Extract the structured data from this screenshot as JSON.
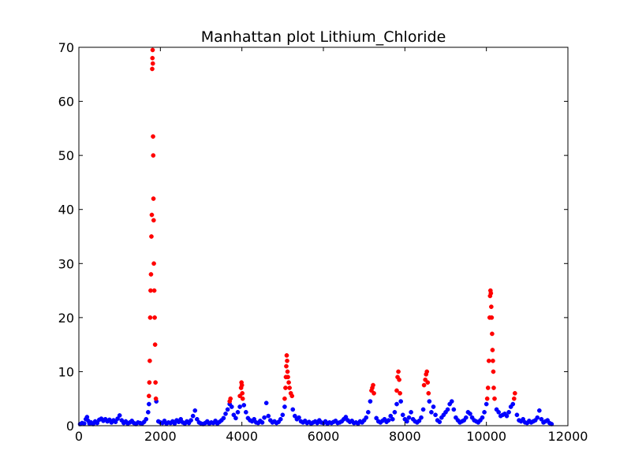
{
  "chart_data": {
    "type": "scatter",
    "title": "Manhattan plot Lithium_Chloride",
    "xlabel": "",
    "ylabel": "",
    "xlim": [
      0,
      12000
    ],
    "ylim": [
      0,
      70
    ],
    "x_ticks": [
      0,
      2000,
      4000,
      6000,
      8000,
      10000,
      12000
    ],
    "x_tick_labels": [
      "0",
      "2000",
      "4000",
      "6000",
      "8000",
      "10000",
      "12000"
    ],
    "y_ticks": [
      0,
      10,
      20,
      30,
      40,
      50,
      60,
      70
    ],
    "y_tick_labels": [
      "0",
      "10",
      "20",
      "30",
      "40",
      "50",
      "60",
      "70"
    ],
    "grid": false,
    "legend": "none",
    "colors": {
      "background": "#ffffff",
      "axes": "#000000",
      "baseline": "#0000ff",
      "significant": "#ff0000"
    },
    "series": [
      {
        "color": "#0000ff",
        "points": [
          [
            30,
            0.3
          ],
          [
            80,
            0.5
          ],
          [
            130,
            0.4
          ],
          [
            170,
            1.2
          ],
          [
            200,
            1.6
          ],
          [
            230,
            0.9
          ],
          [
            260,
            0.4
          ],
          [
            300,
            0.6
          ],
          [
            350,
            0.3
          ],
          [
            400,
            0.8
          ],
          [
            450,
            0.5
          ],
          [
            500,
            1.1
          ],
          [
            550,
            1.3
          ],
          [
            600,
            0.9
          ],
          [
            650,
            1.2
          ],
          [
            700,
            0.8
          ],
          [
            750,
            1.1
          ],
          [
            800,
            0.6
          ],
          [
            850,
            1.0
          ],
          [
            900,
            0.7
          ],
          [
            950,
            1.3
          ],
          [
            1000,
            1.9
          ],
          [
            1050,
            1.0
          ],
          [
            1100,
            0.5
          ],
          [
            1150,
            0.8
          ],
          [
            1200,
            0.4
          ],
          [
            1250,
            0.6
          ],
          [
            1300,
            0.9
          ],
          [
            1350,
            0.5
          ],
          [
            1400,
            0.3
          ],
          [
            1450,
            0.6
          ],
          [
            1500,
            0.5
          ],
          [
            1550,
            0.4
          ],
          [
            1600,
            0.7
          ],
          [
            1650,
            1.2
          ],
          [
            1700,
            2.5
          ],
          [
            1720,
            4.0
          ],
          [
            1900,
            4.5
          ],
          [
            1950,
            0.8
          ],
          [
            2000,
            0.6
          ],
          [
            2050,
            0.5
          ],
          [
            2100,
            0.9
          ],
          [
            2150,
            0.4
          ],
          [
            2200,
            0.6
          ],
          [
            2250,
            0.5
          ],
          [
            2300,
            0.8
          ],
          [
            2350,
            0.4
          ],
          [
            2400,
            1.0
          ],
          [
            2450,
            0.7
          ],
          [
            2500,
            1.2
          ],
          [
            2550,
            0.6
          ],
          [
            2600,
            0.4
          ],
          [
            2650,
            0.8
          ],
          [
            2700,
            0.5
          ],
          [
            2750,
            1.0
          ],
          [
            2800,
            1.8
          ],
          [
            2850,
            2.8
          ],
          [
            2900,
            1.2
          ],
          [
            2950,
            0.6
          ],
          [
            3000,
            0.4
          ],
          [
            3050,
            0.3
          ],
          [
            3100,
            0.5
          ],
          [
            3150,
            0.8
          ],
          [
            3200,
            0.4
          ],
          [
            3250,
            0.6
          ],
          [
            3300,
            0.5
          ],
          [
            3350,
            0.9
          ],
          [
            3400,
            0.4
          ],
          [
            3450,
            0.7
          ],
          [
            3500,
            1.0
          ],
          [
            3550,
            1.4
          ],
          [
            3600,
            2.2
          ],
          [
            3650,
            3.0
          ],
          [
            3700,
            4.0
          ],
          [
            3750,
            3.5
          ],
          [
            3800,
            2.0
          ],
          [
            3850,
            1.4
          ],
          [
            3900,
            2.5
          ],
          [
            3950,
            3.5
          ],
          [
            4050,
            3.8
          ],
          [
            4100,
            2.5
          ],
          [
            4150,
            1.4
          ],
          [
            4200,
            1.0
          ],
          [
            4250,
            0.8
          ],
          [
            4300,
            1.2
          ],
          [
            4350,
            0.6
          ],
          [
            4400,
            0.5
          ],
          [
            4450,
            0.9
          ],
          [
            4500,
            0.6
          ],
          [
            4550,
            1.5
          ],
          [
            4600,
            4.2
          ],
          [
            4650,
            1.8
          ],
          [
            4700,
            1.0
          ],
          [
            4750,
            0.6
          ],
          [
            4800,
            0.8
          ],
          [
            4850,
            0.5
          ],
          [
            4900,
            0.7
          ],
          [
            4950,
            1.2
          ],
          [
            5000,
            2.0
          ],
          [
            5050,
            3.5
          ],
          [
            5250,
            3.0
          ],
          [
            5300,
            1.8
          ],
          [
            5350,
            1.2
          ],
          [
            5400,
            1.5
          ],
          [
            5450,
            0.8
          ],
          [
            5500,
            0.6
          ],
          [
            5550,
            0.9
          ],
          [
            5600,
            0.5
          ],
          [
            5650,
            0.7
          ],
          [
            5700,
            0.4
          ],
          [
            5750,
            0.6
          ],
          [
            5800,
            0.8
          ],
          [
            5850,
            0.5
          ],
          [
            5900,
            1.0
          ],
          [
            5950,
            0.6
          ],
          [
            6000,
            0.5
          ],
          [
            6050,
            0.8
          ],
          [
            6100,
            0.4
          ],
          [
            6150,
            0.6
          ],
          [
            6200,
            0.5
          ],
          [
            6250,
            0.7
          ],
          [
            6300,
            0.9
          ],
          [
            6350,
            0.5
          ],
          [
            6400,
            0.6
          ],
          [
            6450,
            0.8
          ],
          [
            6500,
            1.2
          ],
          [
            6550,
            1.6
          ],
          [
            6600,
            1.0
          ],
          [
            6650,
            0.7
          ],
          [
            6700,
            0.9
          ],
          [
            6750,
            0.5
          ],
          [
            6800,
            0.6
          ],
          [
            6850,
            0.4
          ],
          [
            6900,
            0.8
          ],
          [
            6950,
            0.6
          ],
          [
            7000,
            1.0
          ],
          [
            7050,
            1.5
          ],
          [
            7100,
            2.5
          ],
          [
            7150,
            4.5
          ],
          [
            7300,
            1.4
          ],
          [
            7350,
            0.8
          ],
          [
            7400,
            0.6
          ],
          [
            7450,
            0.9
          ],
          [
            7500,
            1.2
          ],
          [
            7550,
            0.7
          ],
          [
            7600,
            1.0
          ],
          [
            7650,
            1.8
          ],
          [
            7700,
            1.2
          ],
          [
            7750,
            2.5
          ],
          [
            7800,
            4.0
          ],
          [
            7900,
            4.5
          ],
          [
            7950,
            2.0
          ],
          [
            8000,
            1.2
          ],
          [
            8050,
            0.8
          ],
          [
            8100,
            1.5
          ],
          [
            8150,
            2.5
          ],
          [
            8200,
            1.2
          ],
          [
            8250,
            0.8
          ],
          [
            8300,
            0.6
          ],
          [
            8350,
            0.9
          ],
          [
            8400,
            1.5
          ],
          [
            8450,
            3.0
          ],
          [
            8600,
            4.5
          ],
          [
            8650,
            2.5
          ],
          [
            8700,
            3.5
          ],
          [
            8750,
            2.0
          ],
          [
            8800,
            1.0
          ],
          [
            8850,
            0.7
          ],
          [
            8900,
            1.5
          ],
          [
            8950,
            2.0
          ],
          [
            9000,
            2.5
          ],
          [
            9050,
            3.0
          ],
          [
            9100,
            4.0
          ],
          [
            9150,
            4.5
          ],
          [
            9200,
            3.0
          ],
          [
            9250,
            1.5
          ],
          [
            9300,
            1.0
          ],
          [
            9350,
            0.6
          ],
          [
            9400,
            0.8
          ],
          [
            9450,
            1.0
          ],
          [
            9500,
            1.5
          ],
          [
            9550,
            2.5
          ],
          [
            9600,
            2.2
          ],
          [
            9650,
            1.5
          ],
          [
            9700,
            1.0
          ],
          [
            9750,
            0.8
          ],
          [
            9800,
            0.6
          ],
          [
            9850,
            1.0
          ],
          [
            9900,
            1.5
          ],
          [
            9950,
            2.5
          ],
          [
            10000,
            4.0
          ],
          [
            10250,
            3.0
          ],
          [
            10300,
            2.5
          ],
          [
            10350,
            1.8
          ],
          [
            10400,
            2.0
          ],
          [
            10450,
            2.2
          ],
          [
            10500,
            1.8
          ],
          [
            10550,
            2.5
          ],
          [
            10600,
            3.5
          ],
          [
            10650,
            4.0
          ],
          [
            10750,
            2.0
          ],
          [
            10800,
            1.0
          ],
          [
            10850,
            0.8
          ],
          [
            10900,
            1.2
          ],
          [
            10950,
            0.6
          ],
          [
            11000,
            0.5
          ],
          [
            11050,
            0.9
          ],
          [
            11100,
            0.6
          ],
          [
            11150,
            0.8
          ],
          [
            11200,
            1.0
          ],
          [
            11250,
            1.5
          ],
          [
            11300,
            2.8
          ],
          [
            11350,
            1.2
          ],
          [
            11400,
            0.6
          ],
          [
            11450,
            0.8
          ],
          [
            11500,
            1.0
          ],
          [
            11550,
            0.5
          ],
          [
            11600,
            0.3
          ]
        ]
      },
      {
        "color": "#ff0000",
        "points": [
          [
            1720,
            5.5
          ],
          [
            1730,
            8.0
          ],
          [
            1740,
            12.0
          ],
          [
            1750,
            20.0
          ],
          [
            1760,
            25.0
          ],
          [
            1770,
            28.0
          ],
          [
            1780,
            35.0
          ],
          [
            1790,
            39.0
          ],
          [
            1800,
            66.0
          ],
          [
            1805,
            68.0
          ],
          [
            1810,
            69.5
          ],
          [
            1815,
            67.0
          ],
          [
            1820,
            53.5
          ],
          [
            1825,
            50.0
          ],
          [
            1830,
            42.0
          ],
          [
            1835,
            38.0
          ],
          [
            1840,
            30.0
          ],
          [
            1850,
            25.0
          ],
          [
            1860,
            20.0
          ],
          [
            1870,
            15.0
          ],
          [
            1880,
            8.0
          ],
          [
            1890,
            5.0
          ],
          [
            3700,
            4.5
          ],
          [
            3720,
            5.0
          ],
          [
            3950,
            5.5
          ],
          [
            3980,
            7.0
          ],
          [
            3990,
            8.0
          ],
          [
            4000,
            7.5
          ],
          [
            4010,
            6.0
          ],
          [
            4020,
            5.0
          ],
          [
            5050,
            5.0
          ],
          [
            5070,
            7.0
          ],
          [
            5080,
            9.0
          ],
          [
            5090,
            11.0
          ],
          [
            5100,
            13.0
          ],
          [
            5110,
            12.0
          ],
          [
            5120,
            10.0
          ],
          [
            5130,
            9.0
          ],
          [
            5150,
            8.0
          ],
          [
            5170,
            7.0
          ],
          [
            5200,
            6.0
          ],
          [
            5230,
            5.5
          ],
          [
            7180,
            6.5
          ],
          [
            7200,
            7.0
          ],
          [
            7220,
            7.5
          ],
          [
            7240,
            6.0
          ],
          [
            7800,
            6.5
          ],
          [
            7820,
            9.0
          ],
          [
            7840,
            10.0
          ],
          [
            7860,
            8.5
          ],
          [
            7880,
            6.0
          ],
          [
            8470,
            7.5
          ],
          [
            8500,
            8.5
          ],
          [
            8520,
            9.5
          ],
          [
            8540,
            10.0
          ],
          [
            8560,
            8.0
          ],
          [
            8580,
            6.0
          ],
          [
            10020,
            5.0
          ],
          [
            10040,
            7.0
          ],
          [
            10060,
            12.0
          ],
          [
            10080,
            20.0
          ],
          [
            10090,
            24.0
          ],
          [
            10100,
            25.0
          ],
          [
            10110,
            24.5
          ],
          [
            10120,
            22.0
          ],
          [
            10130,
            20.0
          ],
          [
            10140,
            17.0
          ],
          [
            10150,
            14.0
          ],
          [
            10160,
            12.0
          ],
          [
            10170,
            10.0
          ],
          [
            10180,
            7.0
          ],
          [
            10200,
            5.0
          ],
          [
            10680,
            5.0
          ],
          [
            10700,
            6.0
          ]
        ]
      }
    ]
  }
}
